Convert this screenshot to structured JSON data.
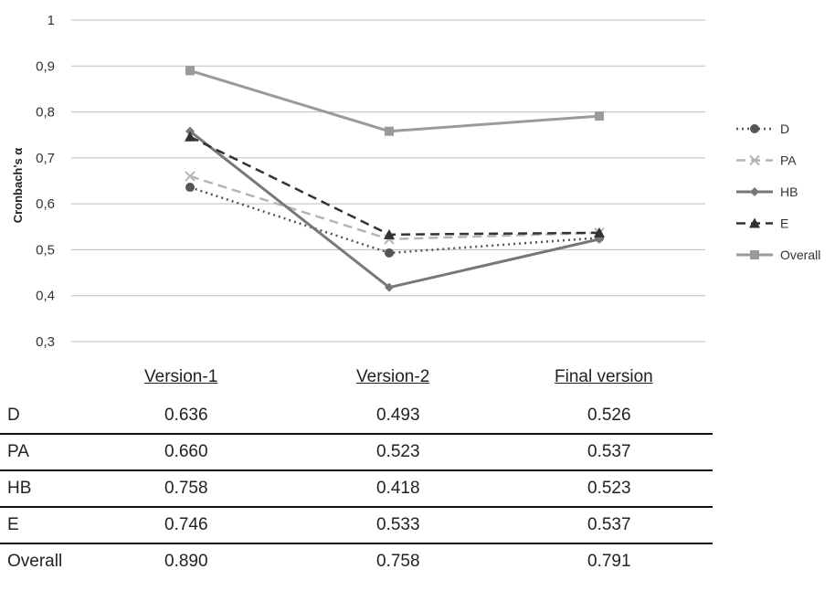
{
  "chart_data": {
    "type": "line",
    "ylabel": "Cronbach's α",
    "xlabel": "",
    "ylim": [
      0.3,
      1
    ],
    "yticks": [
      "0,3",
      "0,4",
      "0,5",
      "0,6",
      "0,7",
      "0,8",
      "0,9",
      "1"
    ],
    "categories": [
      "Version-1",
      "Version-2",
      "Final version"
    ],
    "grid": true,
    "legend_position": "right",
    "series": [
      {
        "name": "D",
        "values": [
          0.636,
          0.493,
          0.526
        ],
        "color": "#555555",
        "dash": "dotted",
        "marker": "circle"
      },
      {
        "name": "PA",
        "values": [
          0.66,
          0.523,
          0.537
        ],
        "color": "#b5b5b5",
        "dash": "dashed",
        "marker": "x"
      },
      {
        "name": "HB",
        "values": [
          0.758,
          0.418,
          0.523
        ],
        "color": "#777777",
        "dash": "solid",
        "marker": "diamond"
      },
      {
        "name": "E",
        "values": [
          0.746,
          0.533,
          0.537
        ],
        "color": "#333333",
        "dash": "dashed",
        "marker": "triangle"
      },
      {
        "name": "Overall",
        "values": [
          0.89,
          0.758,
          0.791
        ],
        "color": "#9a9a9a",
        "dash": "solid",
        "marker": "square"
      }
    ]
  },
  "table": {
    "headers": [
      "Version-1",
      "Version-2",
      "Final version"
    ],
    "rows": [
      {
        "label": "D",
        "cells": [
          "0.636",
          "0.493",
          "0.526"
        ]
      },
      {
        "label": "PA",
        "cells": [
          "0.660",
          "0.523",
          "0.537"
        ]
      },
      {
        "label": "HB",
        "cells": [
          "0.758",
          "0.418",
          "0.523"
        ]
      },
      {
        "label": "E",
        "cells": [
          "0.746",
          "0.533",
          "0.537"
        ]
      },
      {
        "label": "Overall",
        "cells": [
          "0.890",
          "0.758",
          "0.791"
        ]
      }
    ]
  }
}
